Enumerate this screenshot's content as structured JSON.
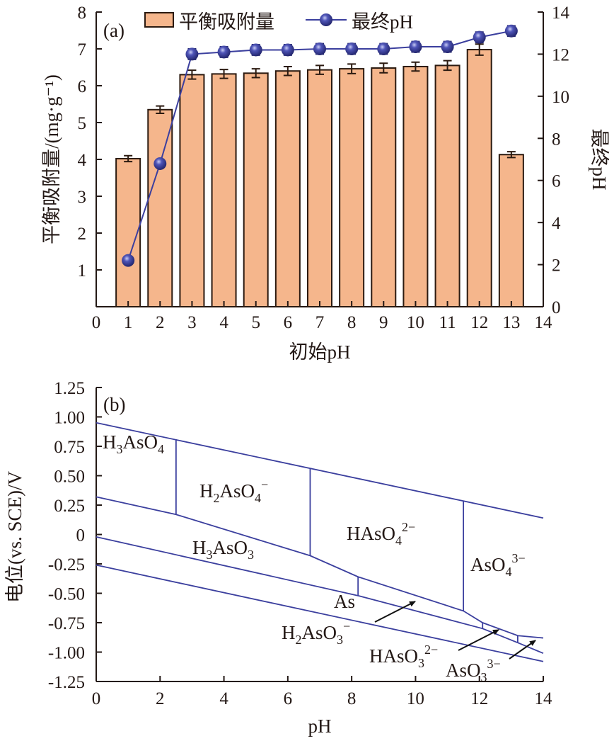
{
  "chart_data": [
    {
      "type": "bar",
      "panel_label": "(a)",
      "xlabel": "初始pH",
      "ylabel": "平衡吸附量/(mg·g⁻¹)",
      "y2label": "最终pH",
      "xlim": [
        0,
        14
      ],
      "ylim": [
        0,
        8
      ],
      "y2lim": [
        0,
        14
      ],
      "xticks": [
        "0",
        "1",
        "2",
        "3",
        "4",
        "5",
        "6",
        "7",
        "8",
        "9",
        "10",
        "11",
        "12",
        "13",
        "14"
      ],
      "yticks": [
        "1",
        "2",
        "3",
        "4",
        "5",
        "6",
        "7",
        "8"
      ],
      "y2ticks": [
        "0",
        "2",
        "4",
        "6",
        "8",
        "10",
        "12",
        "14"
      ],
      "legend_position": "top",
      "categories": [
        1,
        2,
        3,
        4,
        5,
        6,
        7,
        8,
        9,
        10,
        11,
        12,
        13
      ],
      "series": [
        {
          "name": "平衡吸附量",
          "type": "bar",
          "axis": "left",
          "color": "#f5b68c",
          "values": [
            4.02,
            5.35,
            6.3,
            6.32,
            6.34,
            6.4,
            6.43,
            6.46,
            6.48,
            6.52,
            6.55,
            6.98,
            4.13
          ],
          "errors": [
            0.08,
            0.1,
            0.12,
            0.12,
            0.12,
            0.12,
            0.12,
            0.13,
            0.13,
            0.12,
            0.13,
            0.15,
            0.08
          ]
        },
        {
          "name": "最终pH",
          "type": "line",
          "axis": "right",
          "color": "#3b3f9e",
          "values": [
            2.2,
            6.8,
            12.0,
            12.1,
            12.2,
            12.2,
            12.25,
            12.25,
            12.25,
            12.35,
            12.35,
            12.8,
            13.1
          ],
          "errors": [
            0.1,
            0.1,
            0.25,
            0.25,
            0.25,
            0.25,
            0.25,
            0.25,
            0.25,
            0.25,
            0.25,
            0.25,
            0.25
          ]
        }
      ]
    },
    {
      "type": "line",
      "panel_label": "(b)",
      "xlabel": "pH",
      "ylabel": "电位(vs. SCE)/V",
      "xlim": [
        0,
        14
      ],
      "ylim": [
        -1.25,
        1.25
      ],
      "xticks": [
        "0",
        "2",
        "4",
        "6",
        "8",
        "10",
        "12",
        "14"
      ],
      "yticks": [
        "1.25",
        "1.00",
        "0.75",
        "0.50",
        "0.25",
        "0",
        "-0.25",
        "-0.50",
        "-0.75",
        "-1.00",
        "-1.25"
      ],
      "line_color": "#3b3f9e",
      "series": [
        {
          "name": "upper-water",
          "points": [
            [
              0,
              0.95
            ],
            [
              14,
              0.14
            ]
          ]
        },
        {
          "name": "arsenate-arsenite",
          "points": [
            [
              0,
              0.32
            ],
            [
              2.5,
              0.17
            ],
            [
              6.7,
              -0.18
            ],
            [
              8.2,
              -0.36
            ],
            [
              11.5,
              -0.65
            ],
            [
              12.1,
              -0.75
            ],
            [
              13.2,
              -0.86
            ],
            [
              14,
              -0.88
            ]
          ]
        },
        {
          "name": "arsenite-As",
          "points": [
            [
              0,
              -0.02
            ],
            [
              8.2,
              -0.52
            ],
            [
              12.1,
              -0.8
            ],
            [
              13.2,
              -0.92
            ],
            [
              14,
              -1.01
            ]
          ]
        },
        {
          "name": "lower-water",
          "points": [
            [
              0,
              -0.26
            ],
            [
              14,
              -1.08
            ]
          ]
        },
        {
          "name": "H3AsO4/H2AsO4-",
          "points": [
            [
              2.5,
              0.81
            ],
            [
              2.5,
              0.17
            ]
          ]
        },
        {
          "name": "H2AsO4-/HAsO42-",
          "points": [
            [
              6.7,
              0.56
            ],
            [
              6.7,
              -0.18
            ]
          ]
        },
        {
          "name": "HAsO42-/AsO43-",
          "points": [
            [
              11.5,
              0.28
            ],
            [
              11.5,
              -0.65
            ]
          ]
        },
        {
          "name": "H3AsO3/H2AsO3-",
          "points": [
            [
              8.2,
              -0.36
            ],
            [
              8.2,
              -0.52
            ]
          ]
        },
        {
          "name": "H2AsO3-/HAsO32-",
          "points": [
            [
              12.1,
              -0.75
            ],
            [
              12.1,
              -0.8
            ]
          ]
        },
        {
          "name": "HAsO32-/AsO33-",
          "points": [
            [
              13.2,
              -0.86
            ],
            [
              13.2,
              -0.92
            ]
          ]
        }
      ],
      "annotations": [
        {
          "id": "h3aso4",
          "parts": [
            {
              "t": "H"
            },
            {
              "sub": "3"
            },
            {
              "t": "AsO"
            },
            {
              "sub": "4"
            }
          ]
        },
        {
          "id": "h2aso4",
          "parts": [
            {
              "t": "H"
            },
            {
              "sub": "2"
            },
            {
              "t": "AsO"
            },
            {
              "sub": "4"
            },
            {
              "sup": "−"
            }
          ]
        },
        {
          "id": "haso4",
          "parts": [
            {
              "t": "HAsO"
            },
            {
              "sub": "4"
            },
            {
              "sup": "2−"
            }
          ]
        },
        {
          "id": "aso4",
          "parts": [
            {
              "t": "AsO"
            },
            {
              "sub": "4"
            },
            {
              "sup": "3−"
            }
          ]
        },
        {
          "id": "h3aso3",
          "parts": [
            {
              "t": "H"
            },
            {
              "sub": "3"
            },
            {
              "t": "AsO"
            },
            {
              "sub": "3"
            }
          ]
        },
        {
          "id": "as",
          "parts": [
            {
              "t": "As"
            }
          ]
        },
        {
          "id": "h2aso3",
          "parts": [
            {
              "t": "H"
            },
            {
              "sub": "2"
            },
            {
              "t": "AsO"
            },
            {
              "sub": "3"
            },
            {
              "sup": "−"
            }
          ]
        },
        {
          "id": "haso3",
          "parts": [
            {
              "t": "HAsO"
            },
            {
              "sub": "3"
            },
            {
              "sup": "2−"
            }
          ]
        },
        {
          "id": "aso3",
          "parts": [
            {
              "t": "AsO"
            },
            {
              "sub": "3"
            },
            {
              "sup": "3−"
            }
          ]
        }
      ]
    }
  ]
}
